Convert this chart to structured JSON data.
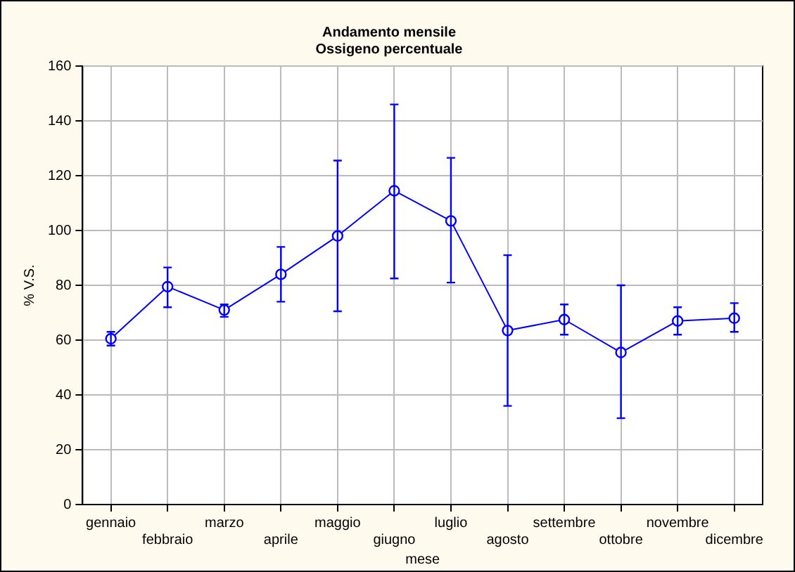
{
  "chart_data": {
    "type": "line",
    "title": "Andamento mensile",
    "subtitle": "Ossigeno percentuale",
    "xlabel": "mese",
    "ylabel": "% V.S.",
    "categories": [
      "gennaio",
      "febbraio",
      "marzo",
      "aprile",
      "maggio",
      "giugno",
      "luglio",
      "agosto",
      "settembre",
      "ottobre",
      "novembre",
      "dicembre"
    ],
    "series": [
      {
        "color": "#0000ff",
        "values": [
          60.5,
          79.5,
          71,
          84,
          98,
          114.5,
          103.5,
          63.5,
          67.5,
          55.5,
          67,
          68
        ],
        "errors": [
          [
            58,
            63
          ],
          [
            72,
            86.5
          ],
          [
            68.5,
            73
          ],
          [
            74,
            94
          ],
          [
            70.5,
            125.5
          ],
          [
            82.5,
            146
          ],
          [
            81,
            126.5
          ],
          [
            36,
            91
          ],
          [
            62,
            73
          ],
          [
            31.5,
            80
          ],
          [
            62,
            72
          ],
          [
            63,
            73.5
          ]
        ]
      }
    ],
    "ylim": [
      0,
      160
    ],
    "yticks": [
      0,
      20,
      40,
      60,
      80,
      100,
      120,
      140,
      160
    ],
    "grid": true,
    "legend": false,
    "marker": "circle",
    "line_style": "solid"
  }
}
